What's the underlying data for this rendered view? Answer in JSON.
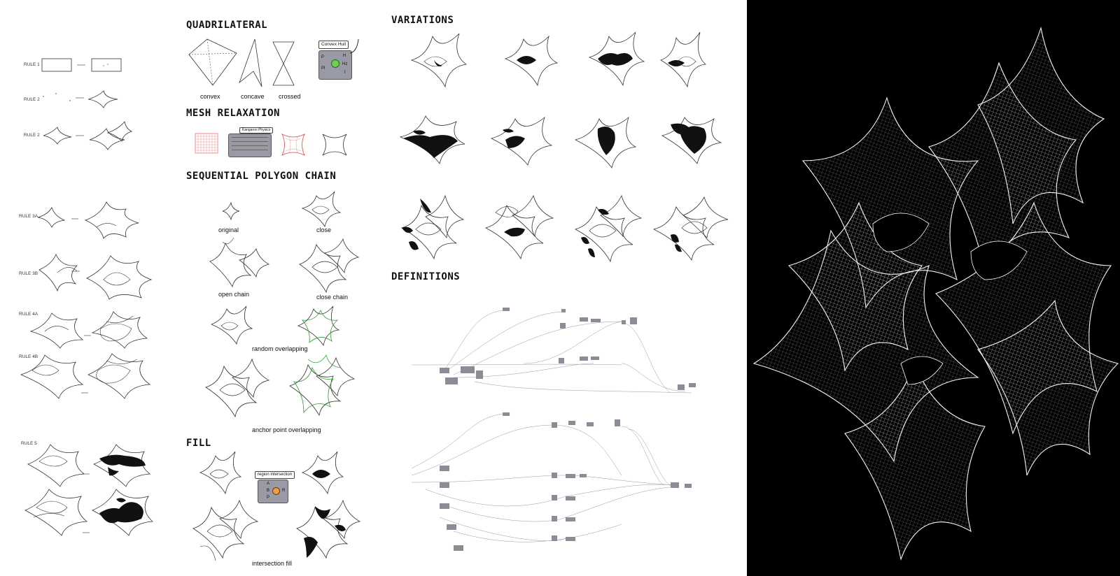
{
  "left_rules": [
    "RULE 1",
    "RULE 2",
    "RULE 2",
    "RULE 3A",
    "RULE 3B",
    "RULE 4A",
    "RULE 4B",
    "RULE 5"
  ],
  "sections": {
    "quadrilateral": {
      "title": "QUADRILATERAL",
      "captions": [
        "convex",
        "concave",
        "crossed"
      ],
      "component": {
        "label": "Convex Hull",
        "inputs": [
          "P",
          "Pl"
        ],
        "outputs": [
          "H",
          "Hz",
          "I"
        ]
      }
    },
    "mesh_relaxation": {
      "title": "MESH RELAXATION",
      "component_label": "Kangaroo Physics"
    },
    "sequential_polygon_chain": {
      "title": "SEQUENTIAL POLYGON CHAIN",
      "captions": [
        "original",
        "close",
        "open chain",
        "close chain",
        "random overlapping",
        "anchor point overlapping"
      ]
    },
    "fill": {
      "title": "FILL",
      "component": {
        "label": "region intersection",
        "inputs": [
          "A",
          "B",
          "P"
        ],
        "outputs": [
          "R"
        ]
      },
      "caption": "intersection fill"
    },
    "variations": {
      "title": "VARIATIONS"
    },
    "definitions": {
      "title": "DEFINITIONS"
    }
  },
  "colors": {
    "dark_panel": "#000000",
    "overlap_stroke": "#2e9d2e",
    "mesh_grid": "#d94a4a",
    "component": "#9a9aa6"
  }
}
